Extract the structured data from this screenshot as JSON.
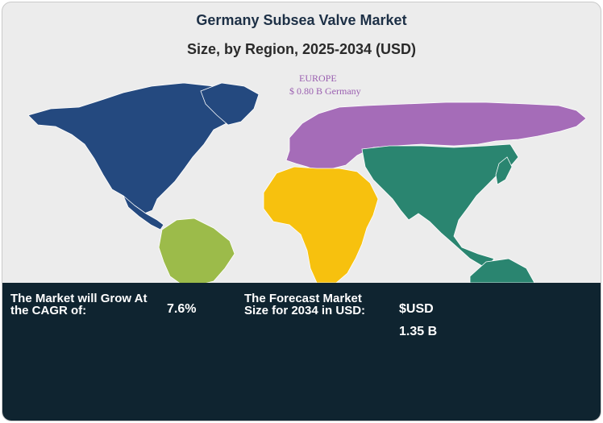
{
  "chart_data": {
    "type": "map",
    "title": "Germany Subsea Valve Market",
    "subtitle": "Size, by Region, 2025-2034 (USD)",
    "regions": [
      {
        "name": "North America",
        "color": "#24497f"
      },
      {
        "name": "Latin America",
        "color": "#9cbb4a"
      },
      {
        "name": "Europe",
        "color": "#a56cb8"
      },
      {
        "name": "Middle East & Africa",
        "color": "#f7c10e"
      },
      {
        "name": "Asia Pacific",
        "color": "#2a8570"
      }
    ],
    "annotation": {
      "region_label": "EUROPE",
      "value_label": "$ 0.80 B Germany"
    }
  },
  "stats": {
    "cagr_label": "The Market will Grow At the CAGR of:",
    "cagr_value": "7.6%",
    "forecast_label": "The Forecast Market Size for 2034 in USD:",
    "forecast_value_line1": "$USD",
    "forecast_value_line2": "1.35 B"
  }
}
